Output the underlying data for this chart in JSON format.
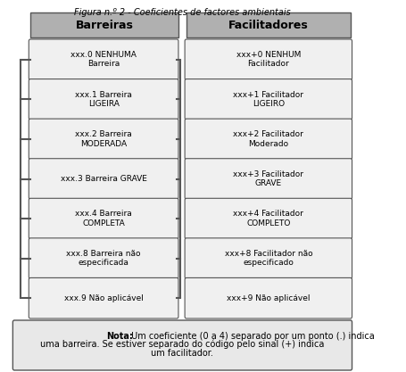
{
  "title": "Figura n.º 2 - Coeficientes de factores ambientais",
  "header_left": "Barreiras",
  "header_right": "Facilitadores",
  "barriers": [
    "xxx.0 NENHUMA\nBarreira",
    "xxx.1 Barreira\nLIGEIRA",
    "xxx.2 Barreira\nMODERADA",
    "xxx.3 Barreira GRAVE",
    "xxx.4 Barreira\nCOMPLETA",
    "xxx.8 Barreira não\nespecificada",
    "xxx.9 Não aplicável"
  ],
  "facilitators": [
    "xxx+0 NENHUM\nFacilitador",
    "xxx+1 Facilitador\nLIGEIRO",
    "xxx+2 Facilitador\nModerado",
    "xxx+3 Facilitador\nGRAVE",
    "xxx+4 Facilitador\nCOMPLETO",
    "xxx+8 Facilitador não\nespecificado",
    "xxx+9 Não aplicável"
  ],
  "note_bold": "Nota:",
  "note_text": " Um coeficiente (0 a 4) separado por um ponto (.) indica\numa barreira. Se estiver separado do código pelo sinal (+) indica\num facilitador.",
  "header_bg": "#b0b0b0",
  "box_bg": "#f0f0f0",
  "note_bg": "#e8e8e8",
  "border_color": "#555555",
  "text_color": "#000000",
  "bg_color": "#ffffff"
}
